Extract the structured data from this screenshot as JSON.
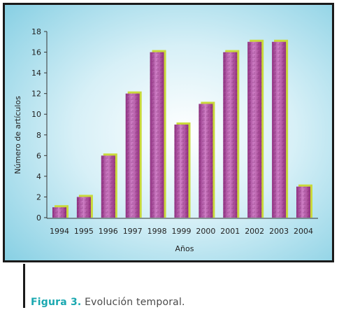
{
  "chart_data": {
    "type": "bar",
    "categories": [
      "1994",
      "1995",
      "1996",
      "1997",
      "1998",
      "1999",
      "2000",
      "2001",
      "2002",
      "2003",
      "2004"
    ],
    "values": [
      1,
      2,
      6,
      12,
      16,
      9,
      11,
      16,
      17,
      17,
      3
    ],
    "xlabel": "Años",
    "ylabel": "Número de artículos",
    "ylim": [
      0,
      18
    ],
    "yticks": [
      0,
      2,
      4,
      6,
      8,
      10,
      12,
      14,
      16,
      18
    ],
    "grid": false,
    "colors": {
      "bar": "#a43d92",
      "bar_light": "#cf7fc6",
      "bar_shadow": "#c9d93a",
      "background_center": "#ffffff",
      "background_edge": "#86cfe3"
    }
  },
  "caption": {
    "label": "Figura 3.",
    "text": "Evolución temporal."
  }
}
